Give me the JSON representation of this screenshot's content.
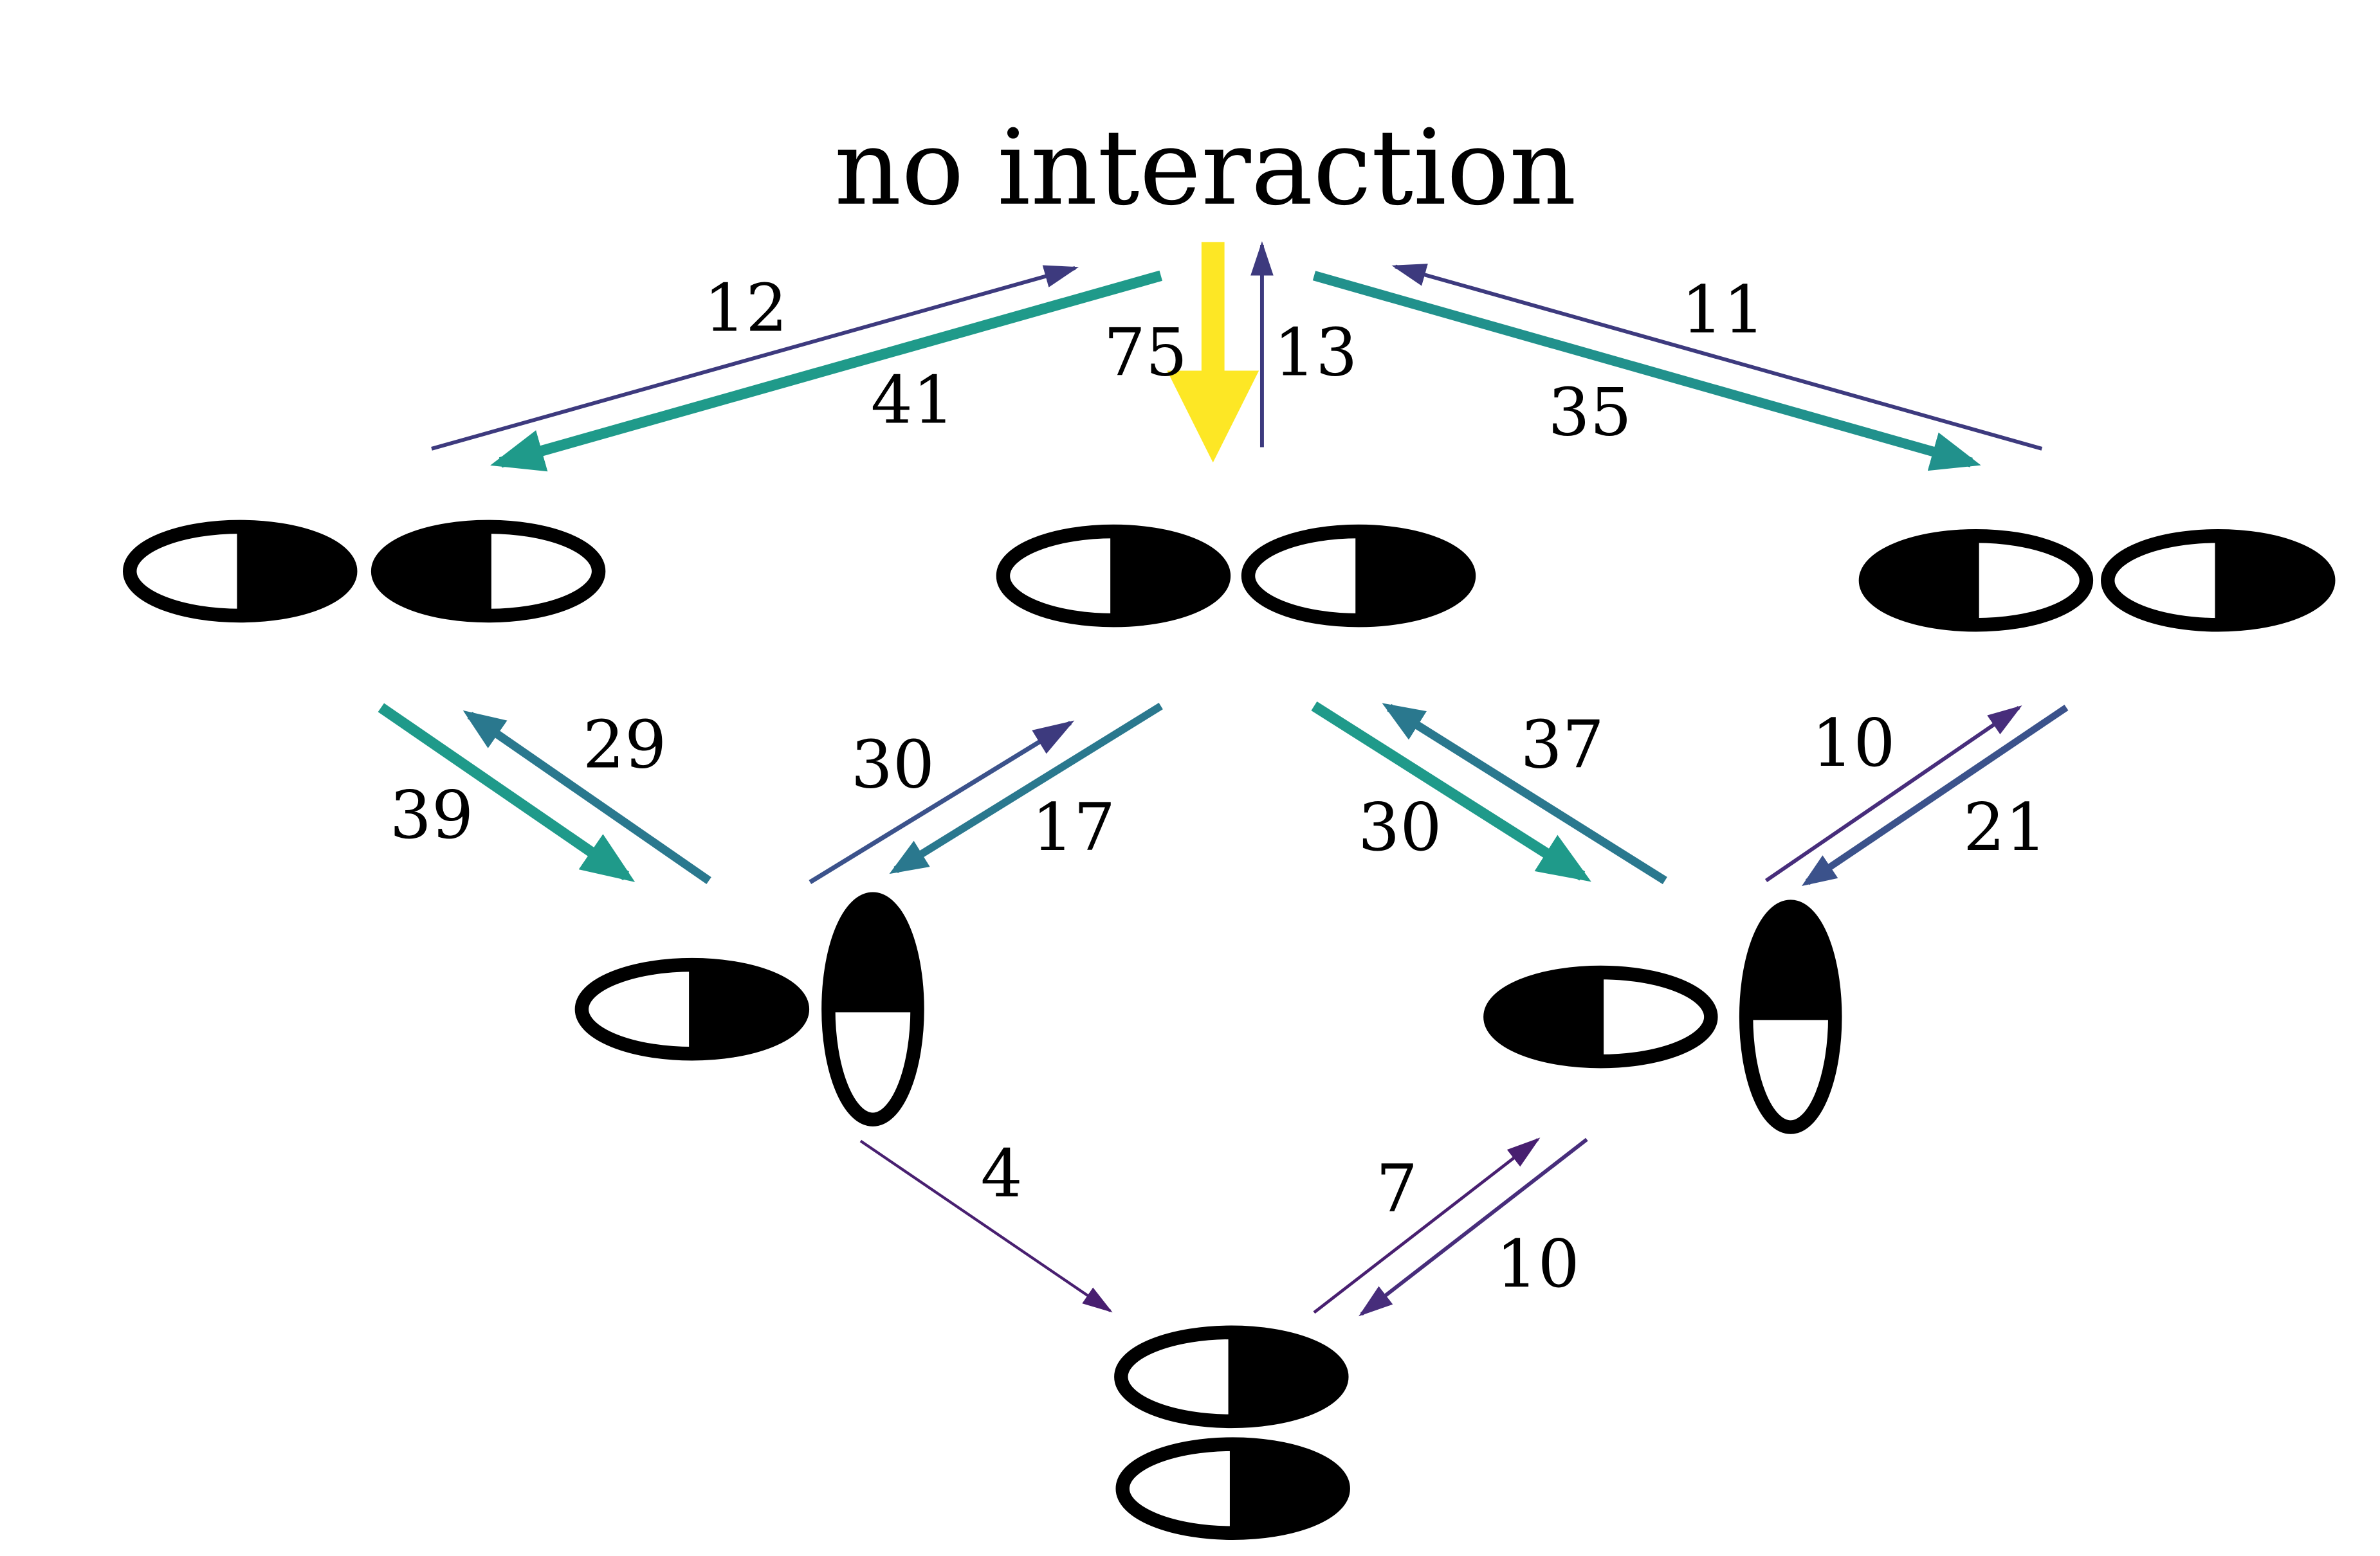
{
  "title": "no interaction",
  "arrows": [
    {
      "id": "n1-to-none",
      "label": "12",
      "color": "#3d3a7e"
    },
    {
      "id": "none-to-n1",
      "label": "41",
      "color": "#1f9a8a"
    },
    {
      "id": "none-to-n2",
      "label": "75",
      "color": "#fde725"
    },
    {
      "id": "n2-to-none",
      "label": "13",
      "color": "#3d3a7e"
    },
    {
      "id": "none-to-n3",
      "label": "35",
      "color": "#21918c"
    },
    {
      "id": "n3-to-none",
      "label": "11",
      "color": "#3d3a7e"
    },
    {
      "id": "n1-to-m1",
      "label": "39",
      "color": "#1f9a8a"
    },
    {
      "id": "m1-to-n1",
      "label": "29",
      "color": "#2a788e"
    },
    {
      "id": "m1-to-n2",
      "label": "30",
      "color": "#3b528b"
    },
    {
      "id": "n2-to-m1",
      "label": "17",
      "color": "#2a788e"
    },
    {
      "id": "n2-to-m2",
      "label": "30",
      "color": "#1f9a8a"
    },
    {
      "id": "m2-to-n2",
      "label": "37",
      "color": "#2a788e"
    },
    {
      "id": "m2-to-n3",
      "label": "10",
      "color": "#472d7b"
    },
    {
      "id": "n3-to-m2",
      "label": "21",
      "color": "#3b528b"
    },
    {
      "id": "m1-to-b",
      "label": "4",
      "color": "#481f70"
    },
    {
      "id": "b-to-m2",
      "label": "7",
      "color": "#481f70"
    },
    {
      "id": "m2-to-b",
      "label": "10",
      "color": "#472d7b"
    }
  ]
}
